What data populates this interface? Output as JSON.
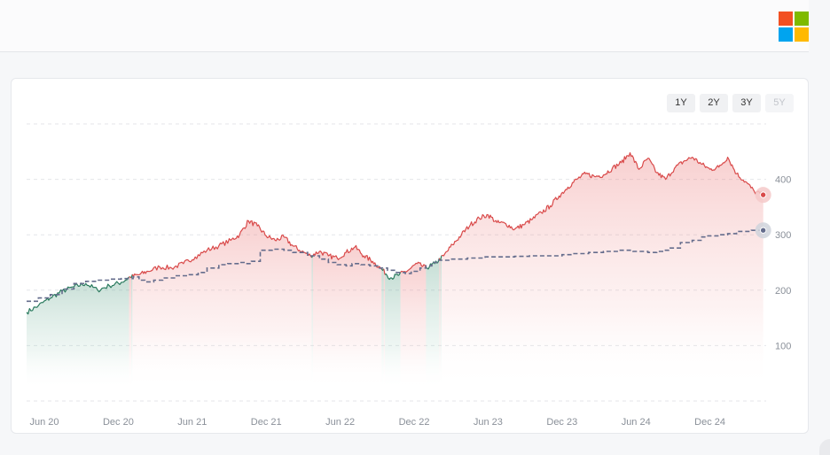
{
  "header": {
    "logo_icon": "microsoft-logo-icon",
    "logo_colors": [
      "#f25022",
      "#7fba00",
      "#00a4ef",
      "#ffb900"
    ]
  },
  "range_buttons": [
    {
      "label": "1Y",
      "active": false
    },
    {
      "label": "2Y",
      "active": false
    },
    {
      "label": "3Y",
      "active": false
    },
    {
      "label": "5Y",
      "active": true
    }
  ],
  "chart_data": {
    "type": "line",
    "title": "",
    "xlabel": "",
    "ylabel": "",
    "x_ticks": [
      "Jun 20",
      "Dec 20",
      "Jun 21",
      "Dec 21",
      "Jun 22",
      "Dec 22",
      "Jun 23",
      "Dec 23",
      "Jun 24",
      "Dec 24"
    ],
    "y_ticks": [
      100,
      200,
      300,
      400
    ],
    "xlim": [
      2020.3,
      2025.3
    ],
    "ylim": [
      0,
      500
    ],
    "grid": true,
    "colors": {
      "above": "#d94a4a",
      "below": "#2a7a5e",
      "reference": "#646c8c"
    },
    "series": [
      {
        "role": "price",
        "x": [
          2020.3,
          2020.38,
          2020.46,
          2020.54,
          2020.62,
          2020.7,
          2020.78,
          2020.86,
          2020.94,
          2021.0,
          2021.06,
          2021.12,
          2021.2,
          2021.28,
          2021.36,
          2021.44,
          2021.52,
          2021.6,
          2021.68,
          2021.74,
          2021.8,
          2021.86,
          2021.92,
          2021.98,
          2022.04,
          2022.1,
          2022.16,
          2022.22,
          2022.28,
          2022.34,
          2022.4,
          2022.46,
          2022.52,
          2022.58,
          2022.64,
          2022.7,
          2022.76,
          2022.82,
          2022.88,
          2022.94,
          2023.0,
          2023.06,
          2023.12,
          2023.18,
          2023.24,
          2023.3,
          2023.36,
          2023.42,
          2023.48,
          2023.54,
          2023.6,
          2023.66,
          2023.72,
          2023.78,
          2023.84,
          2023.9,
          2023.96,
          2024.02,
          2024.08,
          2024.14,
          2024.2,
          2024.26,
          2024.32,
          2024.38,
          2024.44,
          2024.5,
          2024.56,
          2024.62,
          2024.68,
          2024.74,
          2024.8,
          2024.86,
          2024.92,
          2024.98,
          2025.04,
          2025.1,
          2025.16,
          2025.22,
          2025.28
        ],
        "y": [
          160,
          172,
          186,
          198,
          206,
          212,
          200,
          208,
          214,
          224,
          228,
          234,
          242,
          240,
          248,
          260,
          272,
          280,
          290,
          300,
          325,
          316,
          298,
          290,
          296,
          280,
          270,
          262,
          270,
          262,
          258,
          268,
          278,
          262,
          252,
          238,
          222,
          228,
          236,
          248,
          240,
          248,
          262,
          282,
          300,
          318,
          330,
          336,
          322,
          320,
          310,
          318,
          328,
          340,
          352,
          370,
          386,
          400,
          410,
          405,
          408,
          420,
          430,
          448,
          418,
          438,
          412,
          400,
          420,
          432,
          440,
          428,
          418,
          422,
          440,
          410,
          396,
          378,
          372
        ]
      },
      {
        "role": "reference",
        "x": [
          2020.3,
          2020.38,
          2020.46,
          2020.54,
          2020.62,
          2020.7,
          2020.78,
          2020.86,
          2020.94,
          2021.02,
          2021.06,
          2021.1,
          2021.16,
          2021.22,
          2021.3,
          2021.4,
          2021.46,
          2021.52,
          2021.6,
          2021.66,
          2021.74,
          2021.78,
          2021.82,
          2021.88,
          2021.96,
          2022.04,
          2022.1,
          2022.2,
          2022.28,
          2022.34,
          2022.4,
          2022.46,
          2022.5,
          2022.56,
          2022.62,
          2022.68,
          2022.74,
          2022.8,
          2022.86,
          2022.9,
          2022.96,
          2023.0,
          2023.04,
          2023.08,
          2023.16,
          2023.28,
          2023.4,
          2023.5,
          2023.6,
          2023.7,
          2023.82,
          2023.92,
          2024.0,
          2024.1,
          2024.2,
          2024.3,
          2024.4,
          2024.5,
          2024.56,
          2024.6,
          2024.64,
          2024.72,
          2024.8,
          2024.86,
          2024.9,
          2024.98,
          2025.04,
          2025.1,
          2025.2,
          2025.28
        ],
        "y": [
          180,
          186,
          192,
          202,
          212,
          216,
          218,
          220,
          221,
          224,
          218,
          215,
          218,
          222,
          226,
          228,
          232,
          240,
          246,
          248,
          250,
          248,
          252,
          272,
          274,
          272,
          268,
          262,
          256,
          250,
          246,
          244,
          248,
          246,
          244,
          240,
          236,
          232,
          230,
          234,
          240,
          244,
          250,
          254,
          256,
          258,
          260,
          260,
          261,
          262,
          262,
          264,
          266,
          268,
          270,
          272,
          270,
          268,
          270,
          272,
          276,
          286,
          290,
          296,
          298,
          300,
          302,
          306,
          308,
          308
        ]
      }
    ],
    "end_markers": [
      {
        "series": "price",
        "y": 372
      },
      {
        "series": "reference",
        "y": 308
      }
    ]
  }
}
